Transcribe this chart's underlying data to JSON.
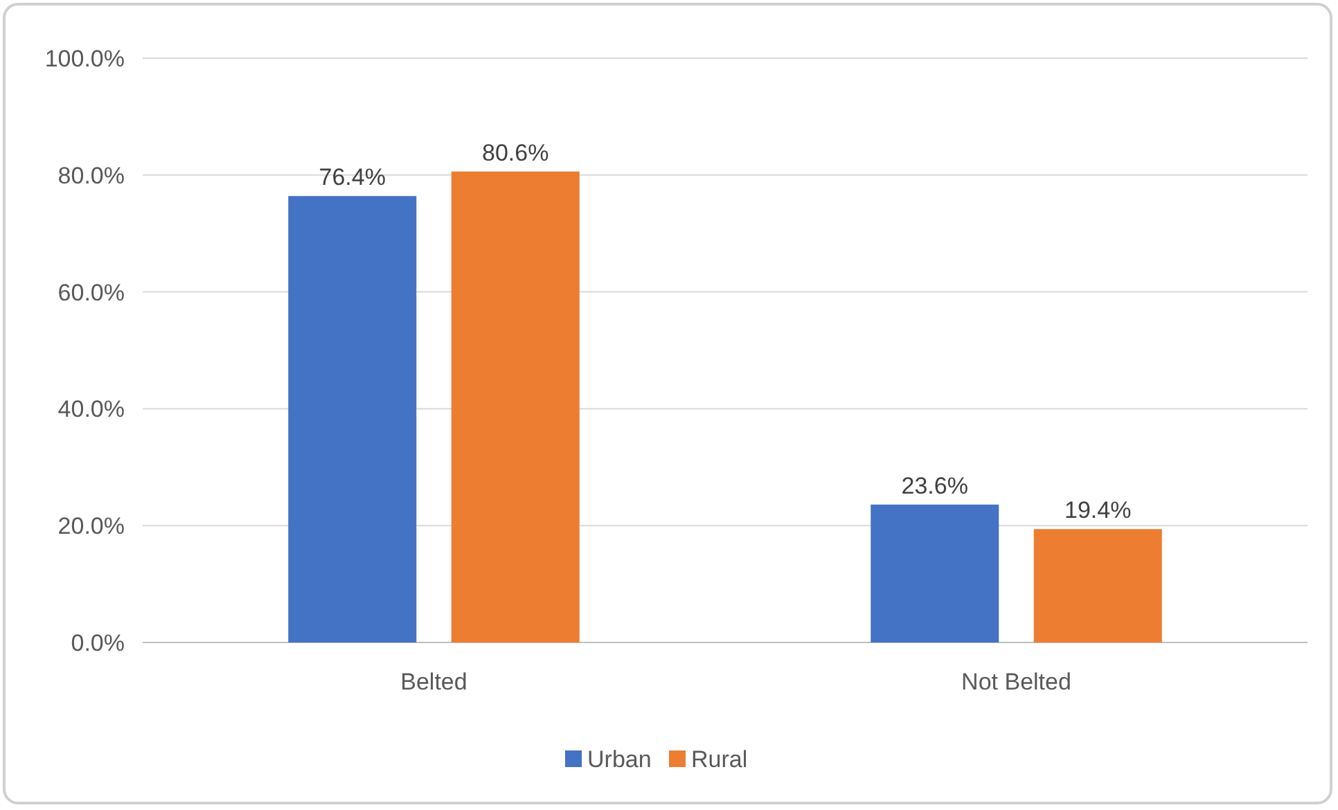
{
  "chart_data": {
    "type": "bar",
    "categories": [
      "Belted",
      "Not Belted"
    ],
    "series": [
      {
        "name": "Urban",
        "color": "#4472c4",
        "values": [
          76.4,
          23.6
        ],
        "value_labels": [
          "76.4%",
          "23.6%"
        ]
      },
      {
        "name": "Rural",
        "color": "#ed7d31",
        "values": [
          80.6,
          19.4
        ],
        "value_labels": [
          "80.6%",
          "19.4%"
        ]
      }
    ],
    "ylim": [
      0,
      100
    ],
    "yticks": [
      {
        "value": 0,
        "label": "0.0%"
      },
      {
        "value": 20,
        "label": "20.0%"
      },
      {
        "value": 40,
        "label": "40.0%"
      },
      {
        "value": 60,
        "label": "60.0%"
      },
      {
        "value": 80,
        "label": "80.0%"
      },
      {
        "value": 100,
        "label": "100.0%"
      }
    ],
    "grid": "y",
    "legend": "bottom"
  }
}
